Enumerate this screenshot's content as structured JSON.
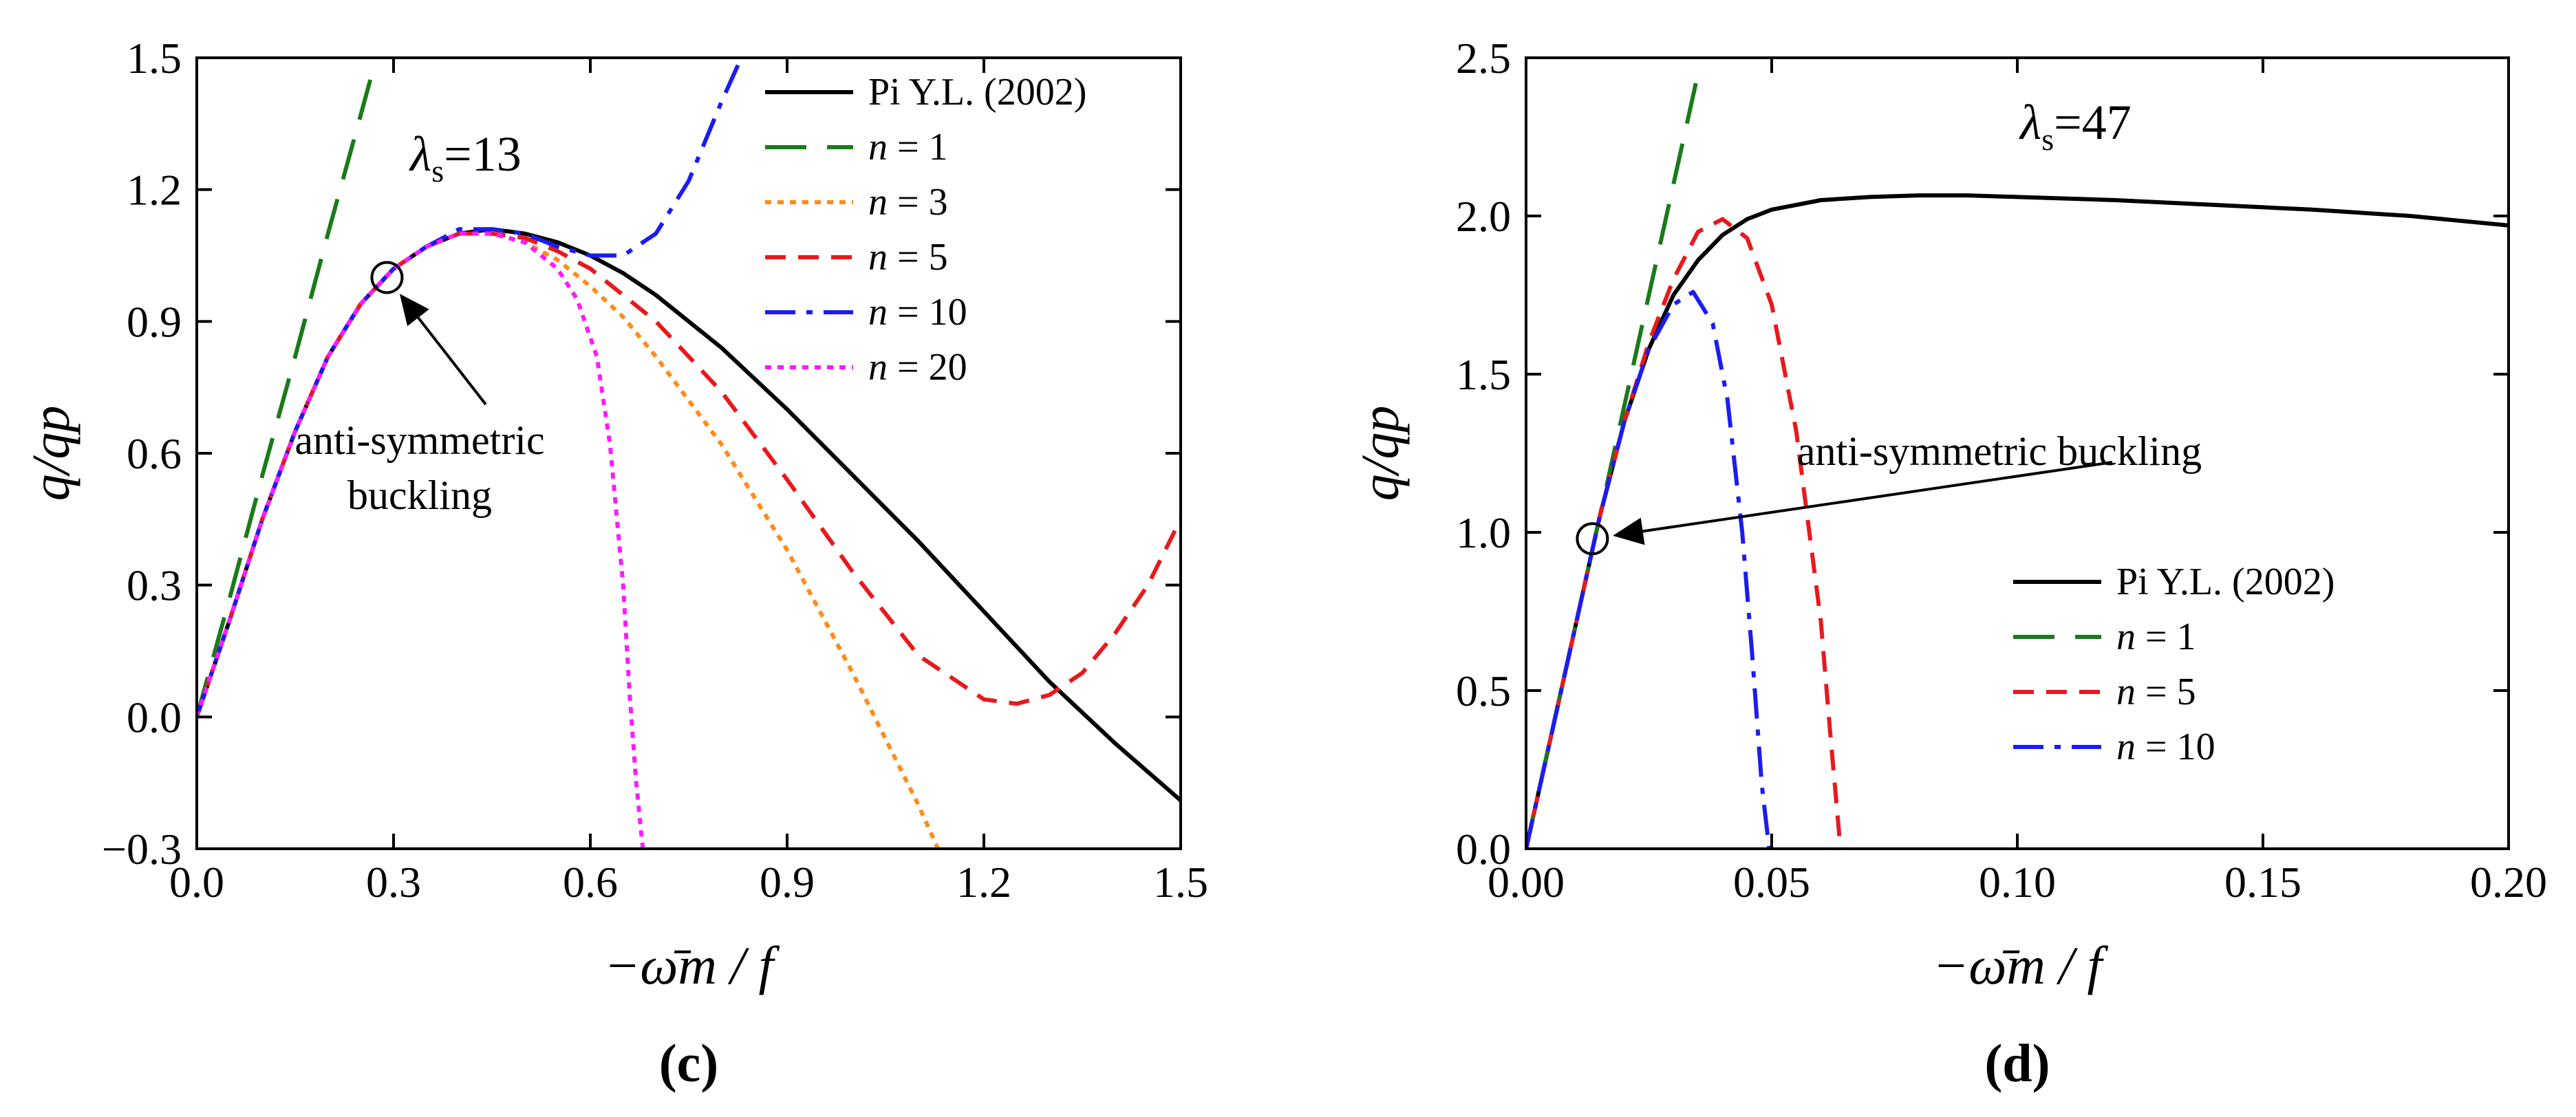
{
  "chart_data": [
    {
      "type": "line",
      "panel_label": "(c)",
      "panel_letter": "c",
      "xlabel": "−ω̄m / f",
      "ylabel": "q/qp",
      "xlim": [
        0.0,
        1.5
      ],
      "ylim": [
        -0.3,
        1.5
      ],
      "xticks": [
        0.0,
        0.3,
        0.6,
        0.9,
        1.2,
        1.5
      ],
      "yticks": [
        -0.3,
        0.0,
        0.3,
        0.6,
        0.9,
        1.2,
        1.5
      ],
      "xtick_labels": [
        "0.0",
        "0.3",
        "0.6",
        "0.9",
        "1.2",
        "1.5"
      ],
      "ytick_labels": [
        "−0.3",
        "0.0",
        "0.3",
        "0.6",
        "0.9",
        "1.2",
        "1.5"
      ],
      "parameter": {
        "symbol": "λ",
        "subscript": "s",
        "value": "=13"
      },
      "legend_position": "top-right",
      "annotation": {
        "lines": [
          "anti-symmetric",
          "buckling"
        ],
        "point": [
          0.29,
          1.0
        ]
      },
      "series": [
        {
          "name": "Pi Y.L. (2002)",
          "color": "#000000",
          "dash": "solid",
          "x": [
            0.0,
            0.05,
            0.1,
            0.15,
            0.2,
            0.25,
            0.3,
            0.35,
            0.4,
            0.45,
            0.5,
            0.55,
            0.6,
            0.65,
            0.7,
            0.8,
            0.9,
            1.0,
            1.1,
            1.2,
            1.3,
            1.4,
            1.5
          ],
          "y": [
            0.0,
            0.22,
            0.45,
            0.65,
            0.82,
            0.94,
            1.02,
            1.07,
            1.1,
            1.11,
            1.1,
            1.08,
            1.05,
            1.01,
            0.96,
            0.84,
            0.7,
            0.55,
            0.4,
            0.24,
            0.08,
            -0.06,
            -0.19
          ]
        },
        {
          "name": "n = 1",
          "color": "#1a7a1a",
          "dash": "long",
          "x": [
            0.0,
            0.05,
            0.1,
            0.15,
            0.2,
            0.25,
            0.27
          ],
          "y": [
            0.0,
            0.27,
            0.55,
            0.82,
            1.1,
            1.37,
            1.48
          ]
        },
        {
          "name": "n = 3",
          "color": "#ff8c1a",
          "dash": "dotted",
          "x": [
            0.0,
            0.05,
            0.1,
            0.15,
            0.2,
            0.25,
            0.3,
            0.35,
            0.4,
            0.45,
            0.5,
            0.55,
            0.6,
            0.65,
            0.7,
            0.8,
            0.9,
            1.0,
            1.1,
            1.13
          ],
          "y": [
            0.0,
            0.22,
            0.45,
            0.65,
            0.82,
            0.94,
            1.02,
            1.07,
            1.1,
            1.1,
            1.08,
            1.04,
            0.98,
            0.91,
            0.82,
            0.62,
            0.38,
            0.1,
            -0.2,
            -0.3
          ]
        },
        {
          "name": "n = 5",
          "color": "#e8191c",
          "dash": "dashed",
          "x": [
            0.0,
            0.05,
            0.1,
            0.15,
            0.2,
            0.25,
            0.3,
            0.35,
            0.4,
            0.45,
            0.5,
            0.55,
            0.6,
            0.65,
            0.7,
            0.8,
            0.9,
            1.0,
            1.1,
            1.2,
            1.25,
            1.3,
            1.35,
            1.4,
            1.45,
            1.5
          ],
          "y": [
            0.0,
            0.22,
            0.45,
            0.65,
            0.82,
            0.94,
            1.02,
            1.07,
            1.1,
            1.1,
            1.09,
            1.06,
            1.02,
            0.96,
            0.9,
            0.74,
            0.54,
            0.33,
            0.14,
            0.04,
            0.03,
            0.05,
            0.1,
            0.19,
            0.3,
            0.45
          ]
        },
        {
          "name": "n = 10",
          "color": "#1c1cf0",
          "dash": "dashdot",
          "x": [
            0.0,
            0.05,
            0.1,
            0.15,
            0.2,
            0.25,
            0.3,
            0.35,
            0.4,
            0.45,
            0.5,
            0.55,
            0.6,
            0.65,
            0.7,
            0.75,
            0.8,
            0.83
          ],
          "y": [
            0.0,
            0.22,
            0.45,
            0.65,
            0.82,
            0.94,
            1.02,
            1.07,
            1.11,
            1.11,
            1.1,
            1.07,
            1.05,
            1.05,
            1.1,
            1.22,
            1.4,
            1.5
          ]
        },
        {
          "name": "n = 20",
          "color": "#ff1aff",
          "dash": "dotted",
          "x": [
            0.0,
            0.05,
            0.1,
            0.15,
            0.2,
            0.25,
            0.3,
            0.35,
            0.4,
            0.45,
            0.5,
            0.55,
            0.58,
            0.61,
            0.63,
            0.65,
            0.66,
            0.67,
            0.68
          ],
          "y": [
            0.0,
            0.22,
            0.45,
            0.65,
            0.82,
            0.94,
            1.02,
            1.07,
            1.1,
            1.1,
            1.08,
            1.02,
            0.95,
            0.82,
            0.62,
            0.3,
            0.05,
            -0.15,
            -0.3
          ]
        }
      ]
    },
    {
      "type": "line",
      "panel_label": "(d)",
      "panel_letter": "d",
      "xlabel": "−ω̄m / f",
      "ylabel": "q/qp",
      "xlim": [
        0.0,
        0.2
      ],
      "ylim": [
        0.0,
        2.5
      ],
      "xticks": [
        0.0,
        0.05,
        0.1,
        0.15,
        0.2
      ],
      "yticks": [
        0.0,
        0.5,
        1.0,
        1.5,
        2.0,
        2.5
      ],
      "xtick_labels": [
        "0.00",
        "0.05",
        "0.10",
        "0.15",
        "0.20"
      ],
      "ytick_labels": [
        "0.0",
        "0.5",
        "1.0",
        "1.5",
        "2.0",
        "2.5"
      ],
      "parameter": {
        "symbol": "λ",
        "subscript": "s",
        "value": "=47"
      },
      "legend_position": "center-right",
      "annotation": {
        "lines": [
          "anti-symmetric buckling"
        ],
        "point": [
          0.0135,
          0.98
        ]
      },
      "series": [
        {
          "name": "Pi Y.L. (2002)",
          "color": "#000000",
          "dash": "solid",
          "x": [
            0.0,
            0.01,
            0.015,
            0.02,
            0.025,
            0.03,
            0.035,
            0.04,
            0.045,
            0.05,
            0.06,
            0.07,
            0.08,
            0.09,
            0.1,
            0.12,
            0.14,
            0.16,
            0.18,
            0.2
          ],
          "y": [
            0.0,
            0.7,
            1.05,
            1.35,
            1.58,
            1.75,
            1.86,
            1.94,
            1.99,
            2.02,
            2.05,
            2.06,
            2.065,
            2.065,
            2.06,
            2.05,
            2.035,
            2.02,
            2.0,
            1.97
          ]
        },
        {
          "name": "n = 1",
          "color": "#1a7a1a",
          "dash": "long",
          "x": [
            0.0,
            0.01,
            0.02,
            0.03,
            0.035
          ],
          "y": [
            0.0,
            0.7,
            1.4,
            2.1,
            2.45
          ]
        },
        {
          "name": "n = 5",
          "color": "#e8191c",
          "dash": "dashed",
          "x": [
            0.0,
            0.01,
            0.015,
            0.02,
            0.025,
            0.03,
            0.035,
            0.04,
            0.045,
            0.05,
            0.055,
            0.06,
            0.062,
            0.064
          ],
          "y": [
            0.0,
            0.7,
            1.05,
            1.35,
            1.6,
            1.8,
            1.95,
            1.99,
            1.93,
            1.72,
            1.32,
            0.72,
            0.35,
            0.0
          ]
        },
        {
          "name": "n = 10",
          "color": "#1c1cf0",
          "dash": "dashdot",
          "x": [
            0.0,
            0.01,
            0.015,
            0.02,
            0.025,
            0.03,
            0.034,
            0.038,
            0.041,
            0.044,
            0.046,
            0.048,
            0.0495
          ],
          "y": [
            0.0,
            0.7,
            1.05,
            1.35,
            1.58,
            1.72,
            1.76,
            1.66,
            1.42,
            1.0,
            0.62,
            0.2,
            0.0
          ]
        }
      ]
    }
  ]
}
